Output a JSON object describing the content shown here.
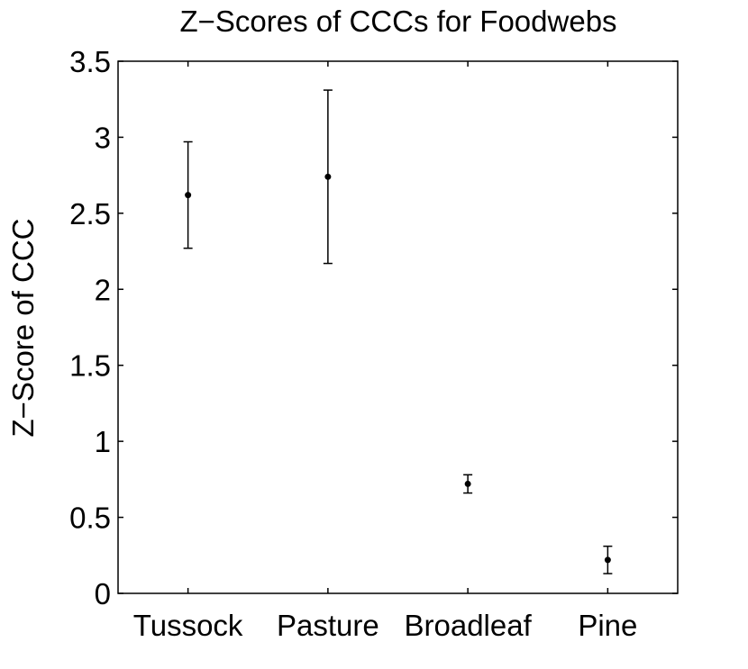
{
  "chart_data": {
    "type": "errorbar",
    "title": "Z−Scores of CCCs for Foodwebs",
    "xlabel": "",
    "ylabel": "Z−Score of CCC",
    "categories": [
      "Tussock",
      "Pasture",
      "Broadleaf",
      "Pine"
    ],
    "values": [
      2.62,
      2.74,
      0.72,
      0.22
    ],
    "error_low": [
      2.27,
      2.17,
      0.66,
      0.13
    ],
    "error_high": [
      2.97,
      3.31,
      0.78,
      0.31
    ],
    "ylim": [
      0,
      3.5
    ],
    "yticks": [
      "0",
      "0.5",
      "1",
      "1.5",
      "2",
      "2.5",
      "3",
      "3.5"
    ],
    "grid": false,
    "colors": {
      "marker": "#000000",
      "axis": "#000000"
    }
  }
}
